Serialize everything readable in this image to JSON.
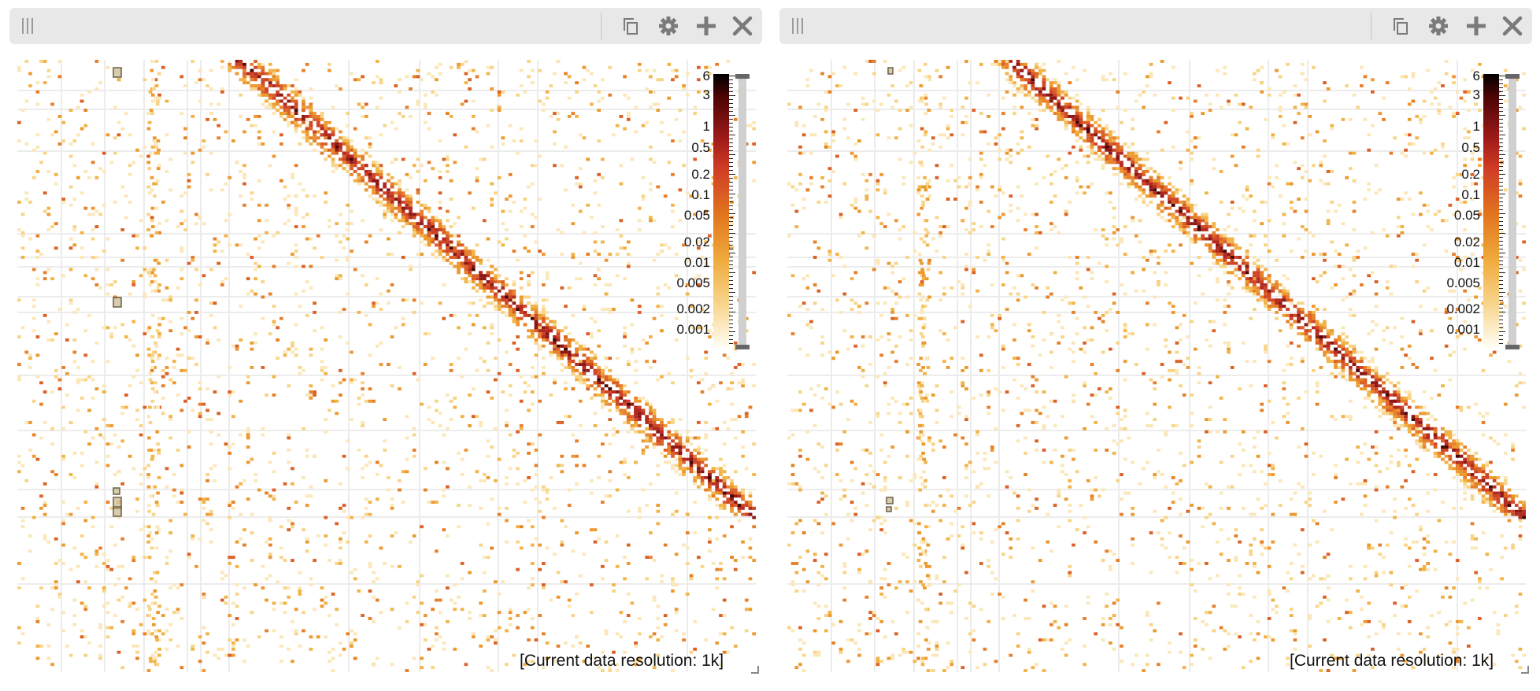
{
  "views": [
    {
      "name": "left",
      "toolbar": {
        "handle_icon": "drag-handle-icon",
        "buttons": [
          {
            "name": "copy-button",
            "icon": "copy-icon"
          },
          {
            "name": "settings-button",
            "icon": "gear-icon"
          },
          {
            "name": "add-button",
            "icon": "plus-icon"
          },
          {
            "name": "close-button",
            "icon": "close-icon"
          }
        ]
      },
      "colorbar_ticks": [
        "6",
        "3",
        "1",
        "0.5",
        "0.2",
        "0.1",
        "0.05",
        "0.02",
        "0.01",
        "0.005",
        "0.002",
        "0.001"
      ],
      "resolution_text": "[Current data resolution: 1k]"
    },
    {
      "name": "right",
      "toolbar": {
        "handle_icon": "drag-handle-icon",
        "buttons": [
          {
            "name": "copy-button",
            "icon": "copy-icon"
          },
          {
            "name": "settings-button",
            "icon": "gear-icon"
          },
          {
            "name": "add-button",
            "icon": "plus-icon"
          },
          {
            "name": "close-button",
            "icon": "close-icon"
          }
        ]
      },
      "colorbar_ticks": [
        "6",
        "3",
        "1",
        "0.5",
        "0.2",
        "0.1",
        "0.05",
        "0.02",
        "0.01",
        "0.005",
        "0.002",
        "0.001"
      ],
      "resolution_text": "[Current data resolution: 1k]"
    }
  ],
  "colors": {
    "header_bg": "#e8e8e8",
    "icon": "#7a7a7a",
    "scale_high": "#000000",
    "scale_mid": "#cf3b25",
    "scale_low": "#f7d58c",
    "grid_lines": "#ececec",
    "annotation_box": "#8a7c64"
  }
}
